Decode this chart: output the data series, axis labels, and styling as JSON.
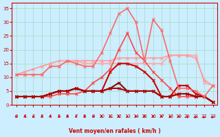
{
  "x": [
    0,
    1,
    2,
    3,
    4,
    5,
    6,
    7,
    8,
    9,
    10,
    11,
    12,
    13,
    14,
    15,
    16,
    17,
    18,
    19,
    20,
    21,
    22,
    23
  ],
  "series": [
    {
      "values": [
        11,
        11,
        11,
        11,
        14,
        14,
        16,
        16,
        15,
        15,
        15,
        15,
        15,
        15,
        15,
        15,
        15,
        15,
        18,
        18,
        18,
        18,
        8,
        7
      ],
      "color": "#ffaaaa",
      "lw": 1.2,
      "marker": "x",
      "markersize": 3
    },
    {
      "values": [
        11,
        12,
        13,
        14,
        15,
        16,
        16,
        16,
        16,
        16,
        16,
        16,
        17,
        17,
        17,
        17,
        17,
        17,
        18,
        18,
        18,
        17,
        9,
        7
      ],
      "color": "#ff9999",
      "lw": 1.2,
      "marker": "x",
      "markersize": 3
    },
    {
      "values": [
        3,
        3,
        3,
        3,
        4,
        5,
        5,
        6,
        5,
        5,
        5,
        12,
        15,
        15,
        14,
        12,
        9,
        3,
        3,
        7,
        7,
        4,
        3,
        1
      ],
      "color": "#cc0000",
      "lw": 1.5,
      "marker": "x",
      "markersize": 3
    },
    {
      "values": [
        3,
        3,
        3,
        3,
        3,
        4,
        4,
        4,
        5,
        8,
        10,
        13,
        20,
        26,
        19,
        16,
        12,
        9,
        6,
        3,
        3,
        3,
        3,
        1
      ],
      "color": "#ff4444",
      "lw": 1.2,
      "marker": "x",
      "markersize": 3
    },
    {
      "values": [
        3,
        3,
        3,
        3,
        4,
        5,
        5,
        6,
        5,
        5,
        5,
        6,
        8,
        5,
        5,
        5,
        5,
        3,
        3,
        4,
        4,
        3,
        3,
        1
      ],
      "color": "#880000",
      "lw": 1.5,
      "marker": "x",
      "markersize": 3
    },
    {
      "values": [
        3,
        3,
        3,
        3,
        4,
        5,
        5,
        6,
        5,
        5,
        5,
        6,
        6,
        5,
        5,
        5,
        5,
        3,
        3,
        4,
        4,
        3,
        3,
        1
      ],
      "color": "#aa0000",
      "lw": 1.5,
      "marker": "x",
      "markersize": 3
    },
    {
      "values": [
        11,
        11,
        11,
        11,
        14,
        14,
        16,
        15,
        14,
        14,
        19,
        26,
        33,
        35,
        30,
        16,
        31,
        27,
        16,
        6,
        6,
        5,
        3,
        7
      ],
      "color": "#ff6666",
      "lw": 1.2,
      "marker": "x",
      "markersize": 3
    }
  ],
  "wind_arrows": [
    0,
    1,
    2,
    3,
    4,
    5,
    6,
    7,
    8,
    9,
    10,
    11,
    12,
    13,
    14,
    15,
    16,
    17,
    18,
    19,
    20,
    21,
    22,
    23
  ],
  "xlabel": "Vent moyen/en rafales ( km/h )",
  "xlim": [
    -0.5,
    23.5
  ],
  "ylim": [
    0,
    37
  ],
  "yticks": [
    0,
    5,
    10,
    15,
    20,
    25,
    30,
    35
  ],
  "xticks": [
    0,
    1,
    2,
    3,
    4,
    5,
    6,
    7,
    8,
    9,
    10,
    11,
    12,
    13,
    14,
    15,
    16,
    17,
    18,
    19,
    20,
    21,
    22,
    23
  ],
  "bg_color": "#cceeff",
  "grid_color": "#aaddcc",
  "text_color": "#cc0000",
  "arrow_color": "#cc0000"
}
